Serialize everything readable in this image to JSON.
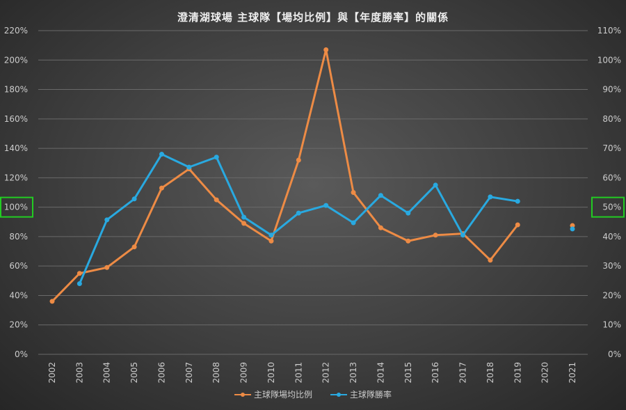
{
  "chart_data": {
    "type": "line",
    "title": "澄清湖球場 主球隊【場均比例】與【年度勝率】的關係",
    "categories": [
      "2002",
      "2003",
      "2004",
      "2005",
      "2006",
      "2007",
      "2008",
      "2009",
      "2010",
      "2011",
      "2012",
      "2013",
      "2014",
      "2015",
      "2016",
      "2017",
      "2018",
      "2019",
      "2020",
      "2021"
    ],
    "y_left": {
      "ticks": [
        "0%",
        "20%",
        "40%",
        "60%",
        "80%",
        "100%",
        "120%",
        "140%",
        "160%",
        "180%",
        "200%",
        "220%"
      ],
      "range": [
        0,
        220
      ],
      "highlight": "100%"
    },
    "y_right": {
      "ticks": [
        "0%",
        "10%",
        "20%",
        "30%",
        "40%",
        "50%",
        "60%",
        "70%",
        "80%",
        "90%",
        "100%",
        "110%"
      ],
      "range": [
        0,
        110
      ],
      "highlight": "50%"
    },
    "grid": true,
    "legend_position": "bottom",
    "series": [
      {
        "name": "主球隊場均比例",
        "axis": "left",
        "color": "#ed8b45",
        "values": [
          36,
          55,
          59,
          73,
          113,
          126,
          105,
          89,
          77,
          132,
          207,
          110,
          86,
          77,
          81,
          82,
          64,
          88,
          null,
          87.5
        ]
      },
      {
        "name": "主球隊勝率",
        "axis": "right",
        "color": "#29a9e0",
        "values": [
          null,
          24,
          45.7,
          52.8,
          68,
          63.6,
          67,
          46.6,
          40.5,
          48,
          50.6,
          44.7,
          54,
          48,
          57.5,
          40.5,
          53.5,
          52,
          null,
          42.6
        ]
      }
    ],
    "highlight_color": "#22cc22"
  }
}
